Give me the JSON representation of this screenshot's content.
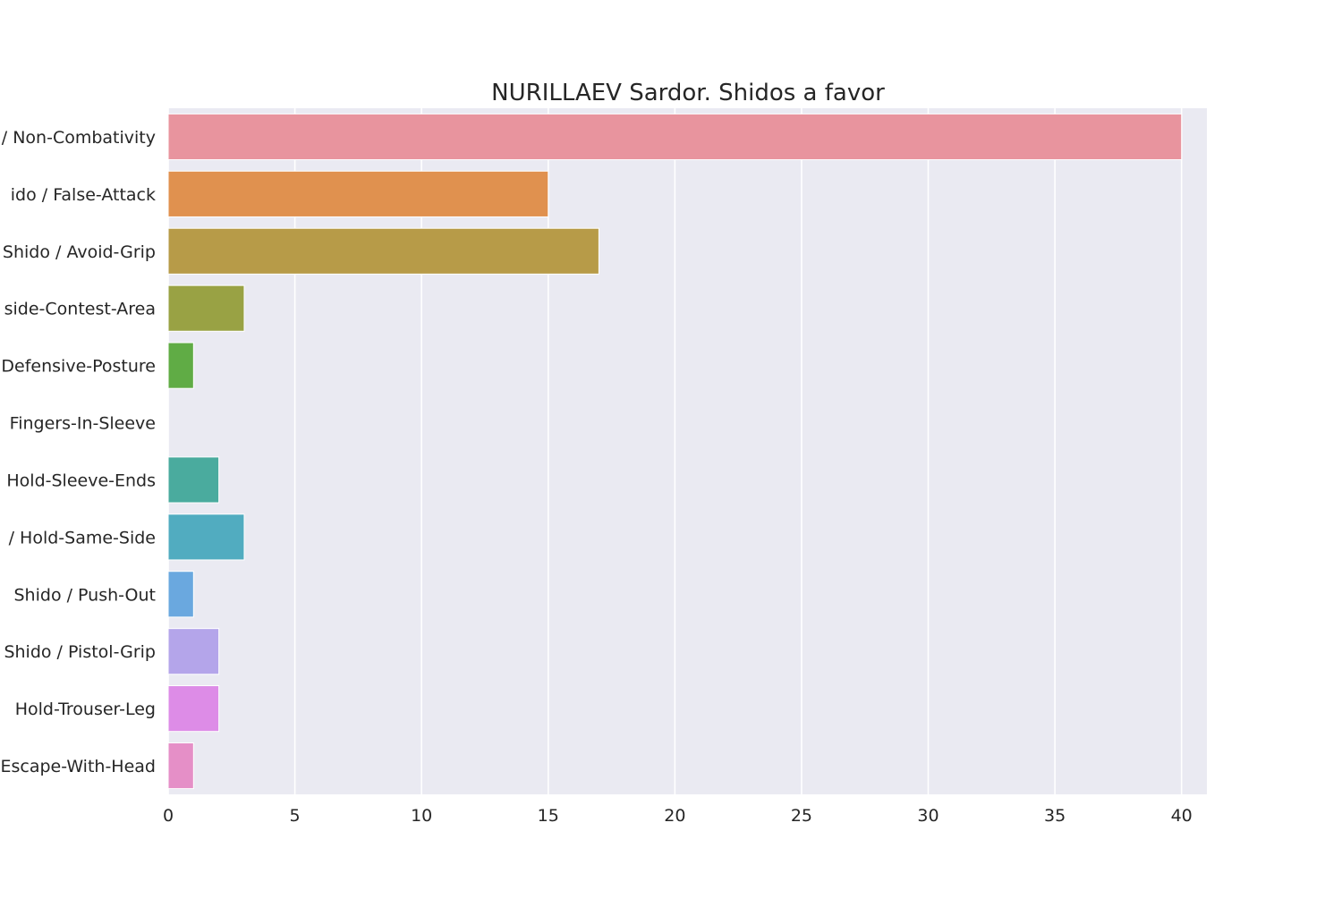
{
  "chart_data": {
    "type": "bar",
    "orientation": "horizontal",
    "title": "NURILLAEV Sardor. Shidos a favor",
    "xlabel": "",
    "ylabel": "",
    "xlim": [
      0,
      41
    ],
    "x_ticks": [
      0,
      5,
      10,
      15,
      20,
      25,
      30,
      35,
      40
    ],
    "grid": true,
    "categories": [
      "Shido / Non-Combativity",
      "Shido / False-Attack",
      "Shido / Avoid-Grip",
      "Shido / Outside-Contest-Area",
      "Shido / Defensive-Posture",
      "Shido / Fingers-In-Sleeve",
      "Shido / Hold-Sleeve-Ends",
      "Shido / Hold-Same-Side",
      "Shido / Push-Out",
      "Shido / Pistol-Grip",
      "Shido / Hold-Trouser-Leg",
      "Shido / Escape-With-Head"
    ],
    "category_labels_visible": [
      "/ Non-Combativity",
      "ido / False-Attack",
      "Shido / Avoid-Grip",
      "side-Contest-Area",
      "Defensive-Posture",
      "Fingers-In-Sleeve",
      "Hold-Sleeve-Ends",
      "/ Hold-Same-Side",
      "Shido / Push-Out",
      "Shido / Pistol-Grip",
      "Hold-Trouser-Leg",
      "Escape-With-Head"
    ],
    "values": [
      40,
      15,
      17,
      3,
      1,
      0,
      2,
      3,
      1,
      2,
      2,
      1
    ],
    "colors": [
      "#e8949e",
      "#e0914f",
      "#b79b48",
      "#99a244",
      "#60ac45",
      "#4ead84",
      "#4aab9e",
      "#51acc0",
      "#6aa8df",
      "#b4a5ea",
      "#dd8ce7",
      "#e58fc7"
    ],
    "background": "#eaeaf2",
    "grid_color": "#ffffff"
  }
}
